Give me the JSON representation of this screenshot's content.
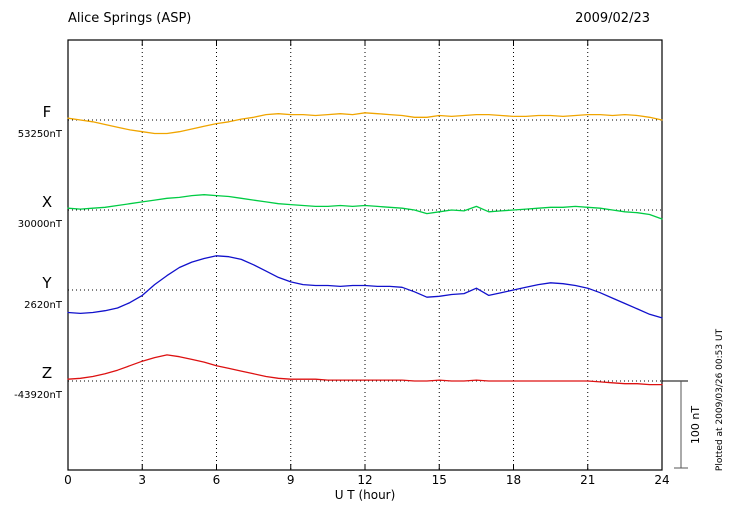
{
  "header": {
    "title": "Alice Springs (ASP)",
    "date": "2009/02/23"
  },
  "scalebar": {
    "label": "100 nT",
    "value_nT": 100
  },
  "plot_note": "Plotted at 2009/03/26 00:53 UT",
  "chart_data": {
    "type": "line",
    "title": "Alice Springs (ASP) magnetogram",
    "subtitle": "2009/02/23",
    "xlabel": "U T (hour)",
    "ylabel": "",
    "x_range": [
      0,
      24
    ],
    "x_ticks": [
      0,
      3,
      6,
      9,
      12,
      15,
      18,
      21,
      24
    ],
    "x_step_hours": 0.5,
    "grid": "dotted vertical at each 3 h; dotted horizontal baseline per component",
    "legend_position": "left margin, one label per trace",
    "scale_bar_nT": 100,
    "series": [
      {
        "name": "F",
        "baseline_label": "53250nT",
        "baseline_nT": 53250,
        "color": "#f0a500",
        "offsets_nT": [
          2,
          0,
          -2,
          -5,
          -8,
          -11,
          -13,
          -15,
          -15,
          -13,
          -10,
          -7,
          -4,
          -2,
          1,
          3,
          6,
          7,
          6,
          6,
          5,
          6,
          7,
          6,
          8,
          7,
          6,
          5,
          3,
          3,
          5,
          4,
          5,
          6,
          6,
          5,
          4,
          4,
          5,
          5,
          4,
          5,
          6,
          6,
          5,
          6,
          5,
          3,
          0
        ]
      },
      {
        "name": "X",
        "baseline_label": "30000nT",
        "baseline_nT": 30000,
        "color": "#00cc44",
        "offsets_nT": [
          2,
          1,
          2,
          3,
          5,
          7,
          9,
          11,
          13,
          14,
          16,
          17,
          16,
          15,
          13,
          11,
          9,
          7,
          6,
          5,
          4,
          4,
          5,
          4,
          5,
          4,
          3,
          2,
          0,
          -4,
          -2,
          0,
          -1,
          4,
          -2,
          -1,
          0,
          1,
          2,
          3,
          3,
          4,
          3,
          2,
          0,
          -2,
          -3,
          -5,
          -10
        ]
      },
      {
        "name": "Y",
        "baseline_label": "2620nT",
        "baseline_nT": 2620,
        "color": "#1111cc",
        "offsets_nT": [
          -25,
          -26,
          -25,
          -23,
          -20,
          -14,
          -6,
          6,
          16,
          25,
          31,
          35,
          38,
          37,
          34,
          28,
          21,
          14,
          9,
          6,
          5,
          5,
          4,
          5,
          5,
          4,
          4,
          3,
          -2,
          -8,
          -7,
          -5,
          -4,
          2,
          -6,
          -3,
          0,
          3,
          6,
          8,
          7,
          5,
          2,
          -3,
          -9,
          -15,
          -21,
          -27,
          -31
        ]
      },
      {
        "name": "Z",
        "baseline_label": "-43920nT",
        "baseline_nT": -43920,
        "color": "#dd1111",
        "offsets_nT": [
          2,
          3,
          5,
          8,
          12,
          17,
          22,
          26,
          29,
          27,
          24,
          21,
          17,
          14,
          11,
          8,
          5,
          3,
          2,
          2,
          2,
          1,
          1,
          1,
          1,
          1,
          1,
          1,
          0,
          0,
          1,
          0,
          0,
          1,
          0,
          0,
          0,
          0,
          0,
          0,
          0,
          0,
          0,
          -1,
          -2,
          -3,
          -3,
          -4,
          -4
        ]
      }
    ]
  }
}
